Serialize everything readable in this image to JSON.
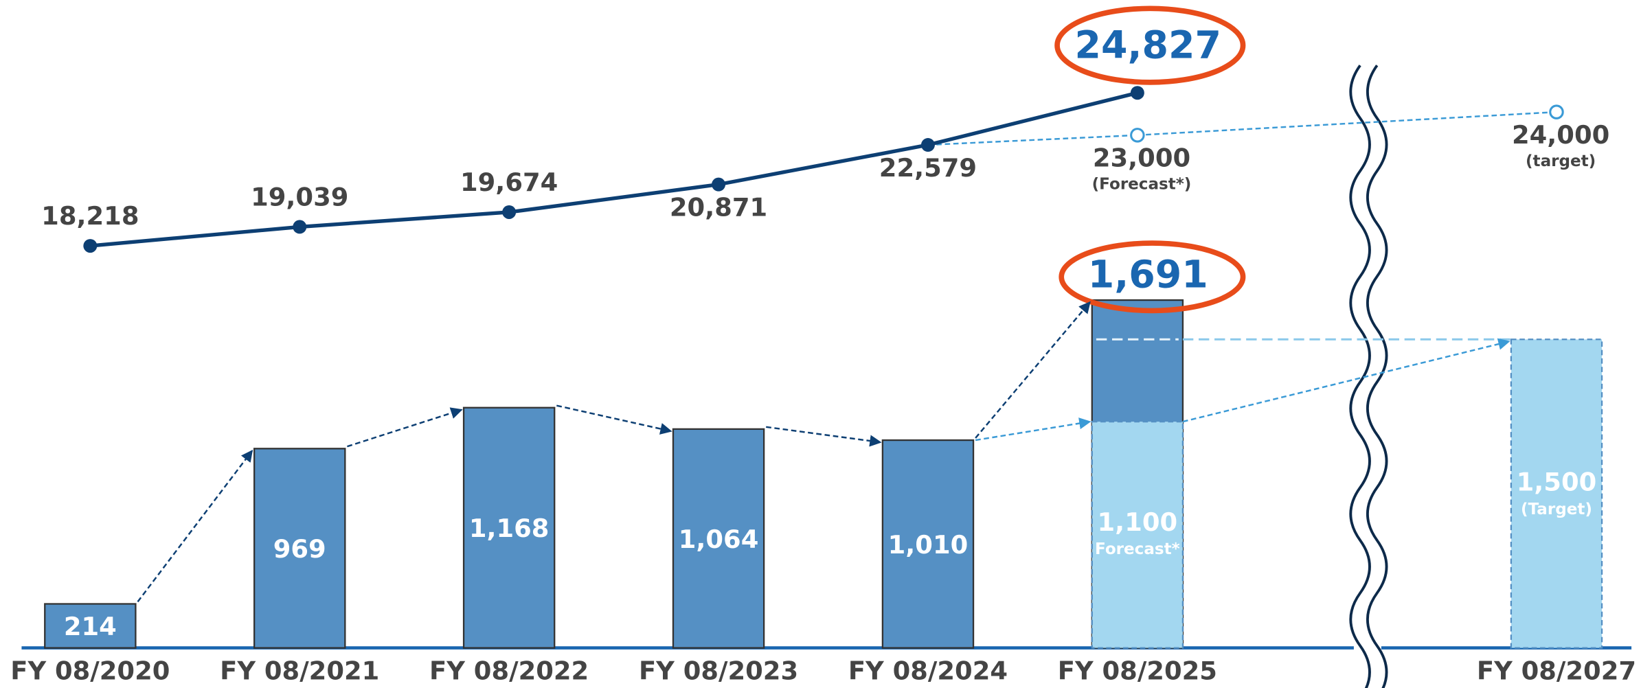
{
  "chart_data": {
    "type": "combo",
    "categories": [
      "FY 08/2020",
      "FY 08/2021",
      "FY 08/2022",
      "FY 08/2023",
      "FY 08/2024",
      "FY 08/2025",
      "FY 08/2027"
    ],
    "axis_break": true,
    "ylim": [
      0,
      3150
    ],
    "y2lim": [
      853,
      28838
    ],
    "series": [
      {
        "type": "bar",
        "color": "#5590c4",
        "values": [
          214,
          969,
          1168,
          1064,
          1010,
          1691,
          null
        ],
        "value_labels": [
          "214",
          "969",
          "1,168",
          "1,064",
          "1,010",
          "1,691",
          null
        ]
      },
      {
        "type": "bar",
        "color": "#a3d7f0",
        "values": [
          null,
          null,
          null,
          null,
          null,
          1100,
          1500
        ],
        "value_labels": [
          null,
          null,
          null,
          null,
          null,
          "1,100",
          "1,500"
        ],
        "notes": [
          null,
          null,
          null,
          null,
          null,
          "Forecast*",
          "(Target)"
        ]
      },
      {
        "type": "line",
        "axis": "y2",
        "color": "#0d3f73",
        "values": [
          18218,
          19039,
          19674,
          20871,
          22579,
          24827,
          null
        ],
        "value_labels": [
          "18,218",
          "19,039",
          "19,674",
          "20,871",
          "22,579",
          "24,827",
          null
        ]
      },
      {
        "type": "line",
        "axis": "y2",
        "color": "#3a9ad6",
        "dashed": true,
        "values": [
          null,
          null,
          null,
          null,
          null,
          23000,
          24000
        ],
        "value_labels": [
          null,
          null,
          null,
          null,
          null,
          "23,000",
          "24,000"
        ],
        "notes": [
          null,
          null,
          null,
          null,
          null,
          "(Forecast*)",
          "(target)"
        ]
      }
    ]
  }
}
